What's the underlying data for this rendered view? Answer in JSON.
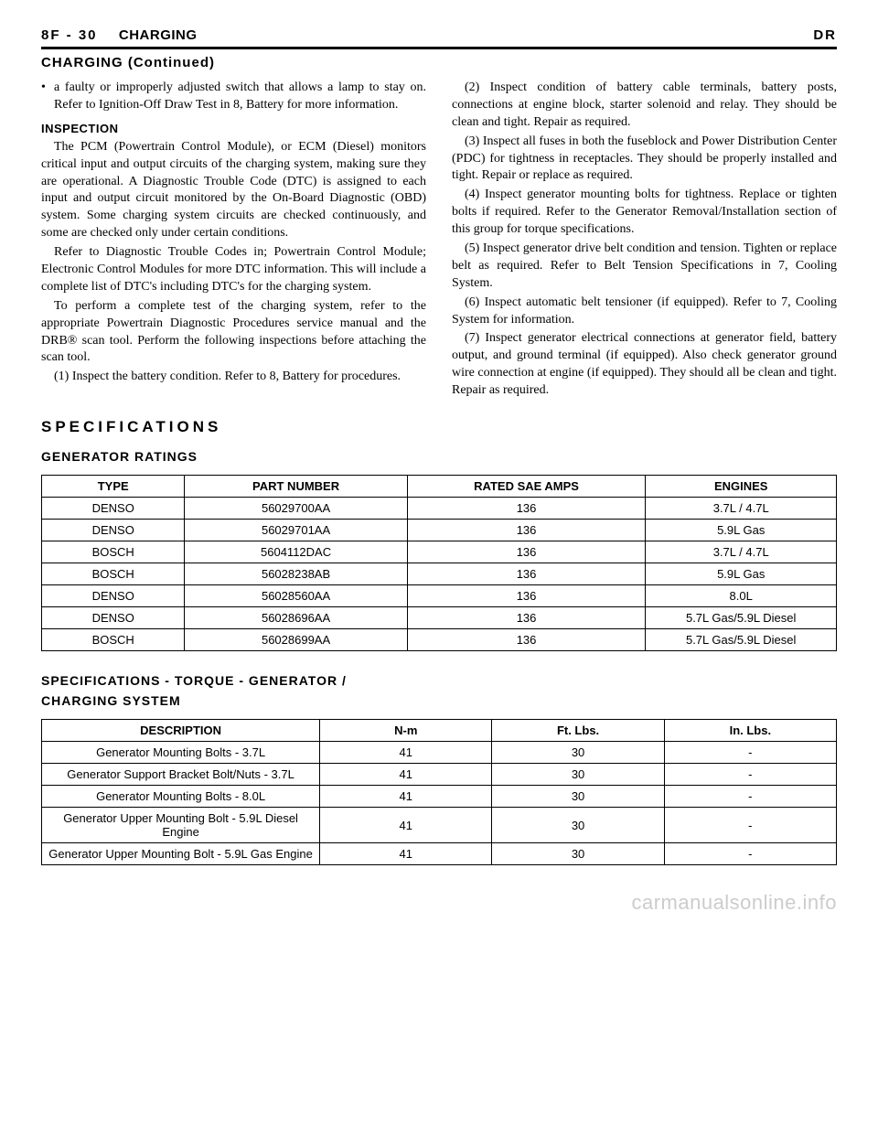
{
  "header": {
    "page_code": "8F - 30",
    "section": "CHARGING",
    "right": "DR",
    "continued": "CHARGING (Continued)"
  },
  "left_col": {
    "bullet": "a faulty or improperly adjusted switch that allows a lamp to stay on. Refer to Ignition-Off Draw Test in 8, Battery for more information.",
    "inspection_heading": "INSPECTION",
    "p1": "The PCM (Powertrain Control Module), or ECM (Diesel) monitors critical input and output circuits of the charging system, making sure they are operational. A Diagnostic Trouble Code (DTC) is assigned to each input and output circuit monitored by the On-Board Diagnostic (OBD) system. Some charging system circuits are checked continuously, and some are checked only under certain conditions.",
    "p2": "Refer to Diagnostic Trouble Codes in; Powertrain Control Module; Electronic Control Modules for more DTC information. This will include a complete list of DTC's including DTC's for the charging system.",
    "p3": "To perform a complete test of the charging system, refer to the appropriate Powertrain Diagnostic Procedures service manual and the DRB® scan tool. Perform the following inspections before attaching the scan tool.",
    "p4": "(1) Inspect the battery condition. Refer to 8, Battery for procedures."
  },
  "right_col": {
    "p1": "(2) Inspect condition of battery cable terminals, battery posts, connections at engine block, starter solenoid and relay. They should be clean and tight. Repair as required.",
    "p2": "(3) Inspect all fuses in both the fuseblock and Power Distribution Center (PDC) for tightness in receptacles. They should be properly installed and tight. Repair or replace as required.",
    "p3": "(4) Inspect generator mounting bolts for tightness. Replace or tighten bolts if required. Refer to the Generator Removal/Installation section of this group for torque specifications.",
    "p4": "(5) Inspect generator drive belt condition and tension. Tighten or replace belt as required. Refer to Belt Tension Specifications in 7, Cooling System.",
    "p5": "(6) Inspect automatic belt tensioner (if equipped). Refer to 7, Cooling System for information.",
    "p6": "(7) Inspect generator electrical connections at generator field, battery output, and ground terminal (if equipped). Also check generator ground wire connection at engine (if equipped). They should all be clean and tight. Repair as required."
  },
  "specifications_heading": "SPECIFICATIONS",
  "gen_ratings_heading": "GENERATOR RATINGS",
  "gen_table": {
    "columns": [
      "TYPE",
      "PART NUMBER",
      "RATED SAE AMPS",
      "ENGINES"
    ],
    "col_widths": [
      "18%",
      "28%",
      "30%",
      "24%"
    ],
    "rows": [
      [
        "DENSO",
        "56029700AA",
        "136",
        "3.7L / 4.7L"
      ],
      [
        "DENSO",
        "56029701AA",
        "136",
        "5.9L Gas"
      ],
      [
        "BOSCH",
        "5604112DAC",
        "136",
        "3.7L / 4.7L"
      ],
      [
        "BOSCH",
        "56028238AB",
        "136",
        "5.9L Gas"
      ],
      [
        "DENSO",
        "56028560AA",
        "136",
        "8.0L"
      ],
      [
        "DENSO",
        "56028696AA",
        "136",
        "5.7L Gas/5.9L Diesel"
      ],
      [
        "BOSCH",
        "56028699AA",
        "136",
        "5.7L Gas/5.9L Diesel"
      ]
    ]
  },
  "torque_heading_l1": "SPECIFICATIONS - TORQUE - GENERATOR /",
  "torque_heading_l2": "CHARGING SYSTEM",
  "torque_table": {
    "columns": [
      "DESCRIPTION",
      "N-m",
      "Ft. Lbs.",
      "In. Lbs."
    ],
    "col_widths": [
      "35%",
      "21.666%",
      "21.666%",
      "21.666%"
    ],
    "rows": [
      [
        "Generator Mounting Bolts - 3.7L",
        "41",
        "30",
        "-"
      ],
      [
        "Generator Support Bracket Bolt/Nuts - 3.7L",
        "41",
        "30",
        "-"
      ],
      [
        "Generator Mounting Bolts - 8.0L",
        "41",
        "30",
        "-"
      ],
      [
        "Generator Upper Mounting Bolt - 5.9L Diesel Engine",
        "41",
        "30",
        "-"
      ],
      [
        "Generator Upper Mounting Bolt - 5.9L Gas Engine",
        "41",
        "30",
        "-"
      ]
    ]
  },
  "watermark": "carmanualsonline.info"
}
